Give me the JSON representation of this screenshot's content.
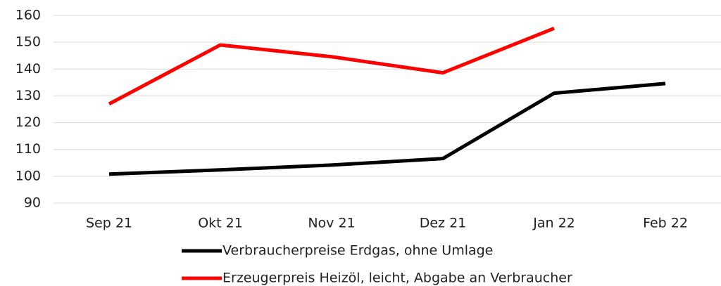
{
  "chart_data": {
    "type": "line",
    "categories": [
      "Sep 21",
      "Okt 21",
      "Nov 21",
      "Dez 21",
      "Jan 22",
      "Feb 22"
    ],
    "series": [
      {
        "name": "Verbraucherpreise Erdgas, ohne Umlage",
        "color": "#000000",
        "values": [
          100.8,
          102.4,
          104.2,
          106.6,
          131,
          134.6
        ]
      },
      {
        "name": "Erzeugerpreis Heizöl, leicht, Abgabe an Verbraucher",
        "color": "#ff0000",
        "values": [
          127,
          149,
          144.6,
          138.6,
          155.2,
          null
        ]
      }
    ],
    "ylim": [
      90,
      160
    ],
    "yticks": [
      90,
      100,
      110,
      120,
      130,
      140,
      150,
      160
    ],
    "grid": true,
    "legend": "bottom"
  }
}
